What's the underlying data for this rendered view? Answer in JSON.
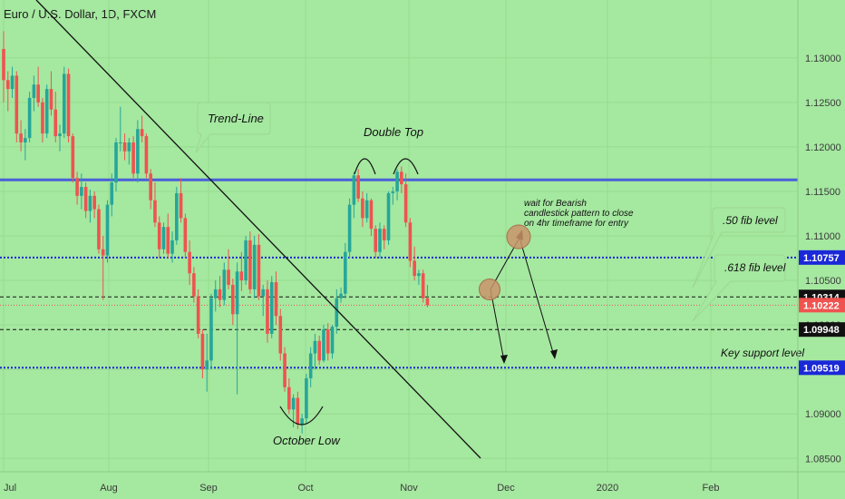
{
  "header": {
    "title": "Euro / U.S. Dollar, 1D, FXCM"
  },
  "colors": {
    "background": "#a5e8a0",
    "up": "#26a69a",
    "down": "#ef5350",
    "resistance": "#4a5fd9",
    "blue_dotted": "#1a28d8",
    "black_dashed": "#111111",
    "last_price": "#ef5350",
    "circle": "#c9946b"
  },
  "chart_data": {
    "type": "candlestick",
    "symbol": "Euro / U.S. Dollar",
    "timeframe": "1D",
    "source": "FXCM",
    "ylim": [
      1.0835,
      1.1365
    ],
    "y_ticks": [
      "1.13000",
      "1.12500",
      "1.12000",
      "1.11500",
      "1.11000",
      "1.10500",
      "1.10000",
      "1.09500",
      "1.09000",
      "1.08500"
    ],
    "x_ticks": [
      "Jul",
      "Aug",
      "Sep",
      "Oct",
      "Nov",
      "Dec",
      "2020",
      "Feb"
    ],
    "candles": [
      [
        1.131,
        1.133,
        1.125,
        1.1275
      ],
      [
        1.1275,
        1.1285,
        1.124,
        1.1265
      ],
      [
        1.1265,
        1.129,
        1.1255,
        1.128
      ],
      [
        1.128,
        1.1285,
        1.1205,
        1.1215
      ],
      [
        1.1215,
        1.123,
        1.1195,
        1.1205
      ],
      [
        1.1205,
        1.122,
        1.1185,
        1.121
      ],
      [
        1.121,
        1.1262,
        1.1205,
        1.1255
      ],
      [
        1.1255,
        1.128,
        1.124,
        1.127
      ],
      [
        1.127,
        1.129,
        1.1245,
        1.125
      ],
      [
        1.125,
        1.1255,
        1.1205,
        1.1215
      ],
      [
        1.1215,
        1.127,
        1.121,
        1.1265
      ],
      [
        1.1265,
        1.1285,
        1.1235,
        1.1242
      ],
      [
        1.1242,
        1.1262,
        1.1205,
        1.1212
      ],
      [
        1.1212,
        1.1225,
        1.1195,
        1.1215
      ],
      [
        1.1215,
        1.129,
        1.121,
        1.1282
      ],
      [
        1.1282,
        1.1288,
        1.1205,
        1.1212
      ],
      [
        1.1212,
        1.1215,
        1.116,
        1.1165
      ],
      [
        1.1165,
        1.1172,
        1.1135,
        1.1145
      ],
      [
        1.1145,
        1.117,
        1.113,
        1.1155
      ],
      [
        1.1155,
        1.116,
        1.112,
        1.1128
      ],
      [
        1.1128,
        1.1152,
        1.1115,
        1.1145
      ],
      [
        1.1145,
        1.115,
        1.112,
        1.113
      ],
      [
        1.113,
        1.1135,
        1.108,
        1.1085
      ],
      [
        1.1085,
        1.11,
        1.1028,
        1.1078
      ],
      [
        1.1078,
        1.114,
        1.107,
        1.1135
      ],
      [
        1.1135,
        1.117,
        1.1122,
        1.116
      ],
      [
        1.116,
        1.121,
        1.115,
        1.1205
      ],
      [
        1.1205,
        1.1245,
        1.1195,
        1.1205
      ],
      [
        1.1205,
        1.1215,
        1.1185,
        1.1195
      ],
      [
        1.1195,
        1.121,
        1.118,
        1.1205
      ],
      [
        1.1205,
        1.1212,
        1.1165,
        1.117
      ],
      [
        1.117,
        1.123,
        1.116,
        1.122
      ],
      [
        1.122,
        1.1235,
        1.1205,
        1.1212
      ],
      [
        1.1212,
        1.1215,
        1.1165,
        1.117
      ],
      [
        1.117,
        1.1175,
        1.113,
        1.114
      ],
      [
        1.114,
        1.116,
        1.111,
        1.1115
      ],
      [
        1.1115,
        1.1122,
        1.1075,
        1.1085
      ],
      [
        1.1085,
        1.1115,
        1.108,
        1.111
      ],
      [
        1.111,
        1.1125,
        1.1075,
        1.108
      ],
      [
        1.108,
        1.1105,
        1.107,
        1.1095
      ],
      [
        1.1095,
        1.1155,
        1.109,
        1.1148
      ],
      [
        1.1148,
        1.1165,
        1.1115,
        1.112
      ],
      [
        1.112,
        1.1125,
        1.1075,
        1.1082
      ],
      [
        1.1082,
        1.1095,
        1.1045,
        1.1058
      ],
      [
        1.1058,
        1.1065,
        1.1025,
        1.1032
      ],
      [
        1.1032,
        1.104,
        1.0985,
        1.099
      ],
      [
        1.099,
        1.0995,
        1.094,
        1.095
      ],
      [
        1.095,
        1.099,
        1.0925,
        1.096
      ],
      [
        1.096,
        1.1035,
        1.095,
        1.103
      ],
      [
        1.103,
        1.105,
        1.1015,
        1.104
      ],
      [
        1.104,
        1.1055,
        1.102,
        1.1028
      ],
      [
        1.1028,
        1.107,
        1.1022,
        1.1062
      ],
      [
        1.1062,
        1.1085,
        1.104,
        1.1045
      ],
      [
        1.1045,
        1.1052,
        1.1,
        1.1012
      ],
      [
        1.1012,
        1.107,
        1.0922,
        1.106
      ],
      [
        1.106,
        1.1082,
        1.1038,
        1.105
      ],
      [
        1.105,
        1.11,
        1.1045,
        1.1095
      ],
      [
        1.1095,
        1.1105,
        1.1035,
        1.104
      ],
      [
        1.104,
        1.11,
        1.103,
        1.109
      ],
      [
        1.109,
        1.1102,
        1.1028,
        1.1032
      ],
      [
        1.1032,
        1.1045,
        1.101,
        1.104
      ],
      [
        1.104,
        1.105,
        1.098,
        1.099
      ],
      [
        1.099,
        1.1055,
        1.0985,
        1.1048
      ],
      [
        1.1048,
        1.106,
        1.1,
        1.101
      ],
      [
        1.101,
        1.1018,
        1.096,
        1.0968
      ],
      [
        1.0968,
        1.0975,
        1.0925,
        1.093
      ],
      [
        1.093,
        1.094,
        1.09,
        1.0905
      ],
      [
        1.0905,
        1.0922,
        1.0885,
        1.0918
      ],
      [
        1.0918,
        1.0925,
        1.0883,
        1.0888
      ],
      [
        1.0888,
        1.09,
        1.0878,
        1.0895
      ],
      [
        1.0895,
        1.0945,
        1.089,
        1.094
      ],
      [
        1.094,
        1.0975,
        1.093,
        1.0968
      ],
      [
        1.0968,
        1.099,
        1.095,
        1.0982
      ],
      [
        1.0982,
        1.0988,
        1.0955,
        1.096
      ],
      [
        1.096,
        1.1,
        1.0958,
        1.0995
      ],
      [
        1.0995,
        1.1002,
        1.096,
        1.0968
      ],
      [
        1.0968,
        1.1,
        1.0962,
        1.0998
      ],
      [
        1.0998,
        1.104,
        1.099,
        1.103
      ],
      [
        1.103,
        1.1042,
        1.1025,
        1.1035
      ],
      [
        1.1035,
        1.1092,
        1.103,
        1.1082
      ],
      [
        1.1082,
        1.1142,
        1.1075,
        1.1135
      ],
      [
        1.1135,
        1.1172,
        1.112,
        1.1168
      ],
      [
        1.1168,
        1.1175,
        1.1138,
        1.1142
      ],
      [
        1.1142,
        1.115,
        1.111,
        1.112
      ],
      [
        1.112,
        1.1148,
        1.1115,
        1.114
      ],
      [
        1.114,
        1.1142,
        1.11,
        1.1108
      ],
      [
        1.1108,
        1.1112,
        1.1075,
        1.1082
      ],
      [
        1.1082,
        1.1115,
        1.1075,
        1.1108
      ],
      [
        1.1108,
        1.1112,
        1.1085,
        1.1095
      ],
      [
        1.1095,
        1.115,
        1.109,
        1.1148
      ],
      [
        1.1148,
        1.1155,
        1.1135,
        1.115
      ],
      [
        1.115,
        1.1175,
        1.114,
        1.1172
      ],
      [
        1.1172,
        1.1178,
        1.1148,
        1.1158
      ],
      [
        1.1158,
        1.117,
        1.111,
        1.1115
      ],
      [
        1.1115,
        1.112,
        1.1065,
        1.1072
      ],
      [
        1.1072,
        1.1088,
        1.105,
        1.1055
      ],
      [
        1.1055,
        1.1062,
        1.1045,
        1.1058
      ],
      [
        1.1058,
        1.1062,
        1.1025,
        1.103
      ],
      [
        1.103,
        1.1045,
        1.102,
        1.1022
      ]
    ],
    "horizontal_levels": [
      {
        "price": 1.1163,
        "style": "solid",
        "color": "#4a5fd9",
        "label": ""
      },
      {
        "price": 1.10757,
        "style": "dotted",
        "color": "#1a28d8",
        "label": "1.10757"
      },
      {
        "price": 1.10314,
        "style": "dashed",
        "color": "#111111",
        "label": "1.10314"
      },
      {
        "price": 1.10222,
        "style": "last-price",
        "color": "#ef5350",
        "label": "1.10222"
      },
      {
        "price": 1.09948,
        "style": "dashed",
        "color": "#111111",
        "label": "1.09948"
      },
      {
        "price": 1.09519,
        "style": "dotted",
        "color": "#1a28d8",
        "label": "1.09519"
      }
    ],
    "annotations": {
      "trend_line": "Trend-Line",
      "double_top": "Double Top",
      "october_low": "October Low",
      "wait_note": [
        "wait for Bearish",
        "candlestick pattern to close",
        "on 4hr timeframe for entry"
      ],
      "fib_50": ".50 fib level",
      "fib_618": ".618 fib level",
      "key_support": "Key support level"
    }
  }
}
